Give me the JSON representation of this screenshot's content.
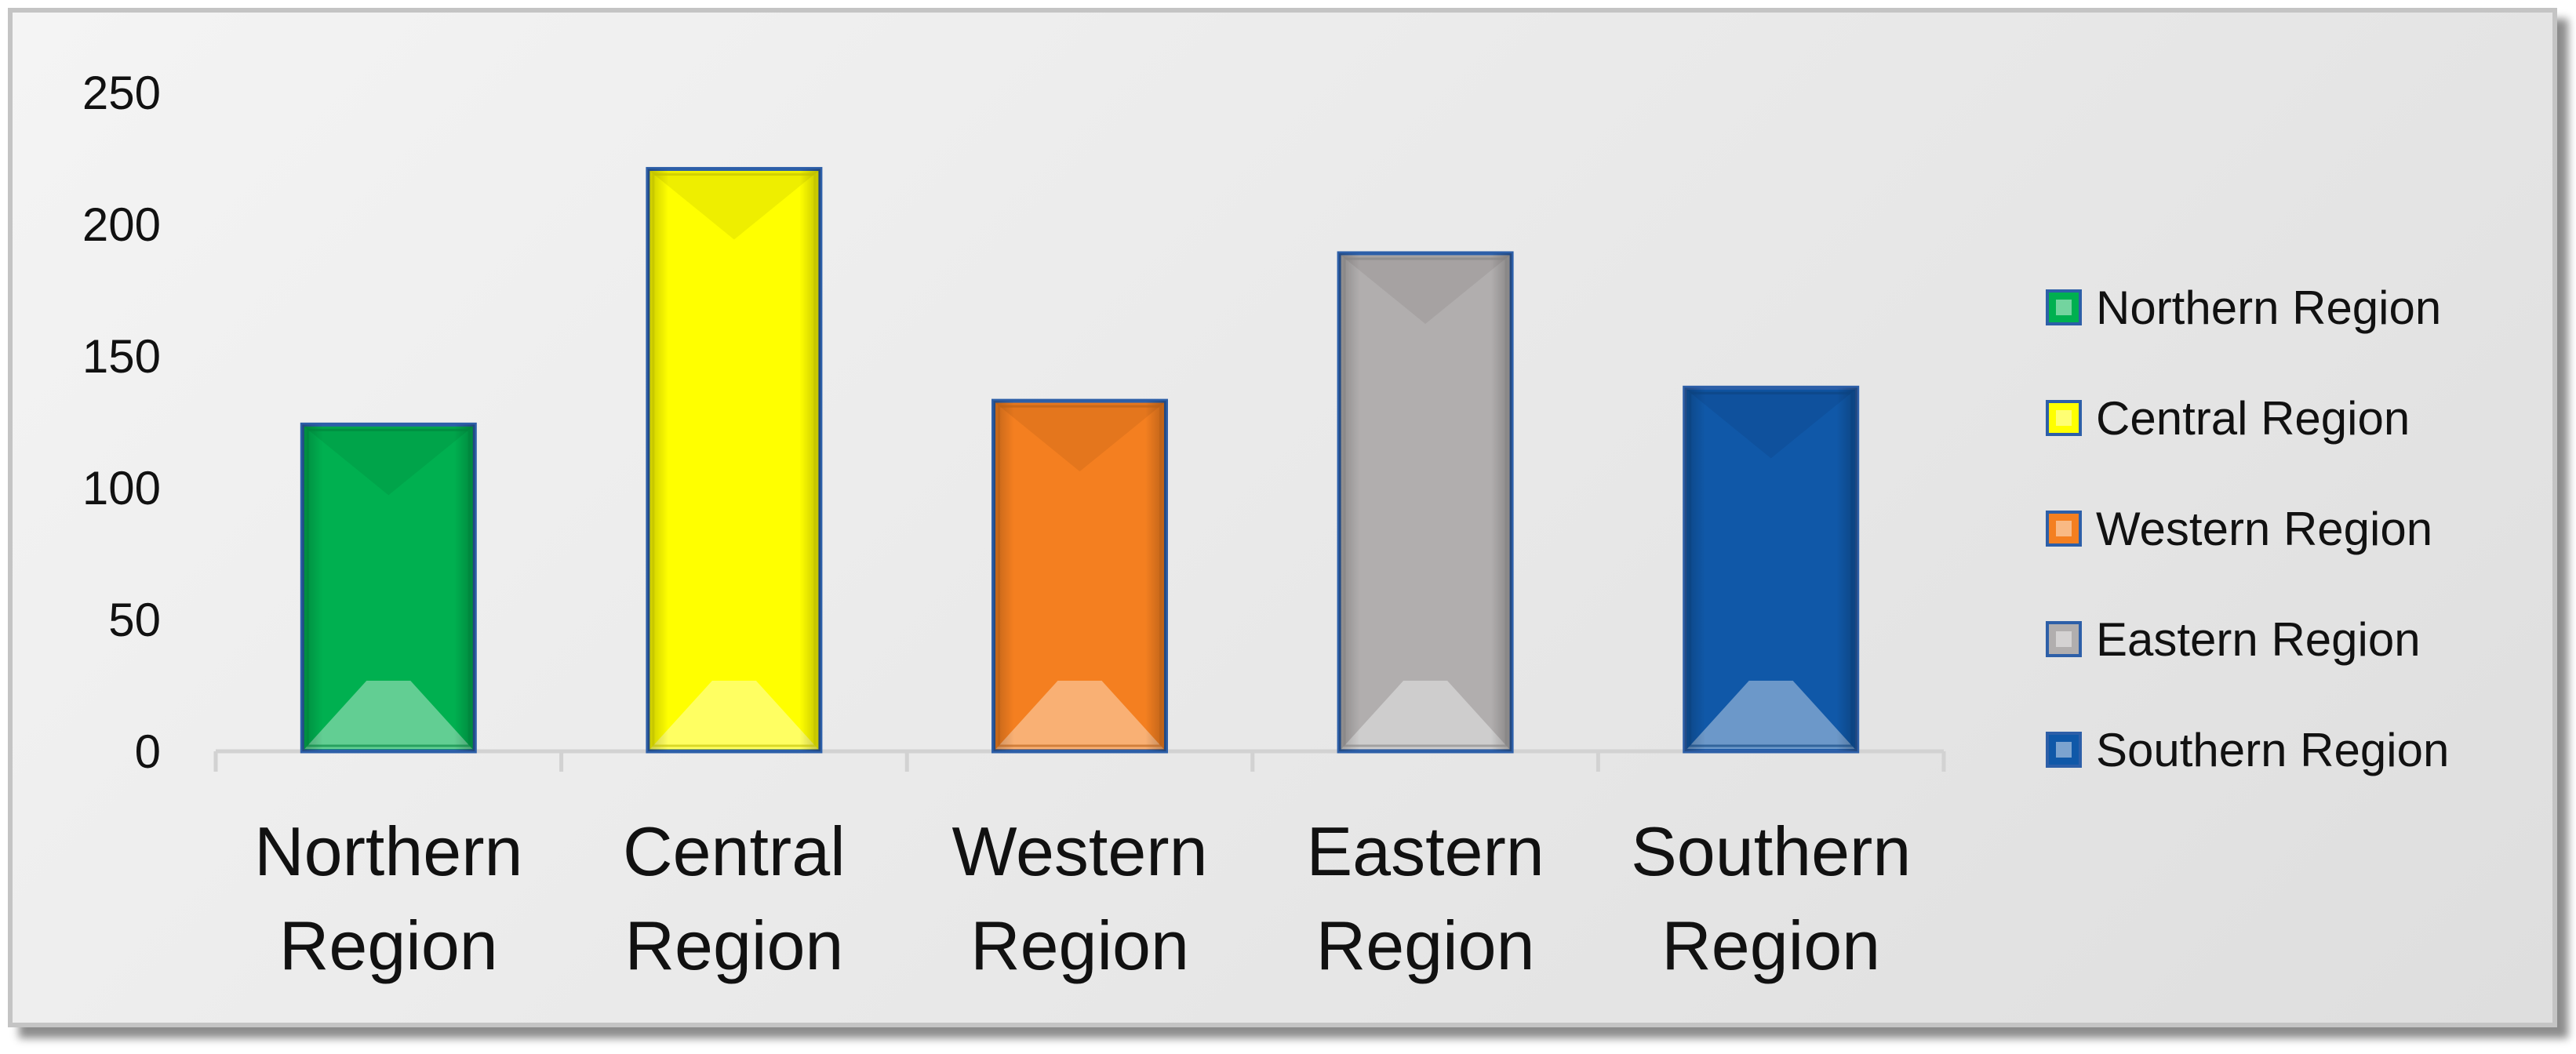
{
  "chart_data": {
    "type": "bar",
    "categories": [
      "Northern Region",
      "Central Region",
      "Western Region",
      "Eastern Region",
      "Southern Region"
    ],
    "category_lines": [
      [
        "Northern",
        "Region"
      ],
      [
        "Central",
        "Region"
      ],
      [
        "Western",
        "Region"
      ],
      [
        "Eastern",
        "Region"
      ],
      [
        "Southern",
        "Region"
      ]
    ],
    "values": [
      124,
      221,
      133,
      189,
      138
    ],
    "colors": [
      "#00b050",
      "#ffff00",
      "#f47f20",
      "#b1aeae",
      "#1058a8"
    ],
    "title": "",
    "xlabel": "",
    "ylabel": "",
    "ylim": [
      0,
      250
    ],
    "yticks": [
      "0",
      "50",
      "100",
      "150",
      "200",
      "250"
    ],
    "grid": false,
    "legend": {
      "placement": "right",
      "entries": [
        "Northern Region",
        "Central Region",
        "Western Region",
        "Eastern Region",
        "Southern Region"
      ]
    }
  }
}
